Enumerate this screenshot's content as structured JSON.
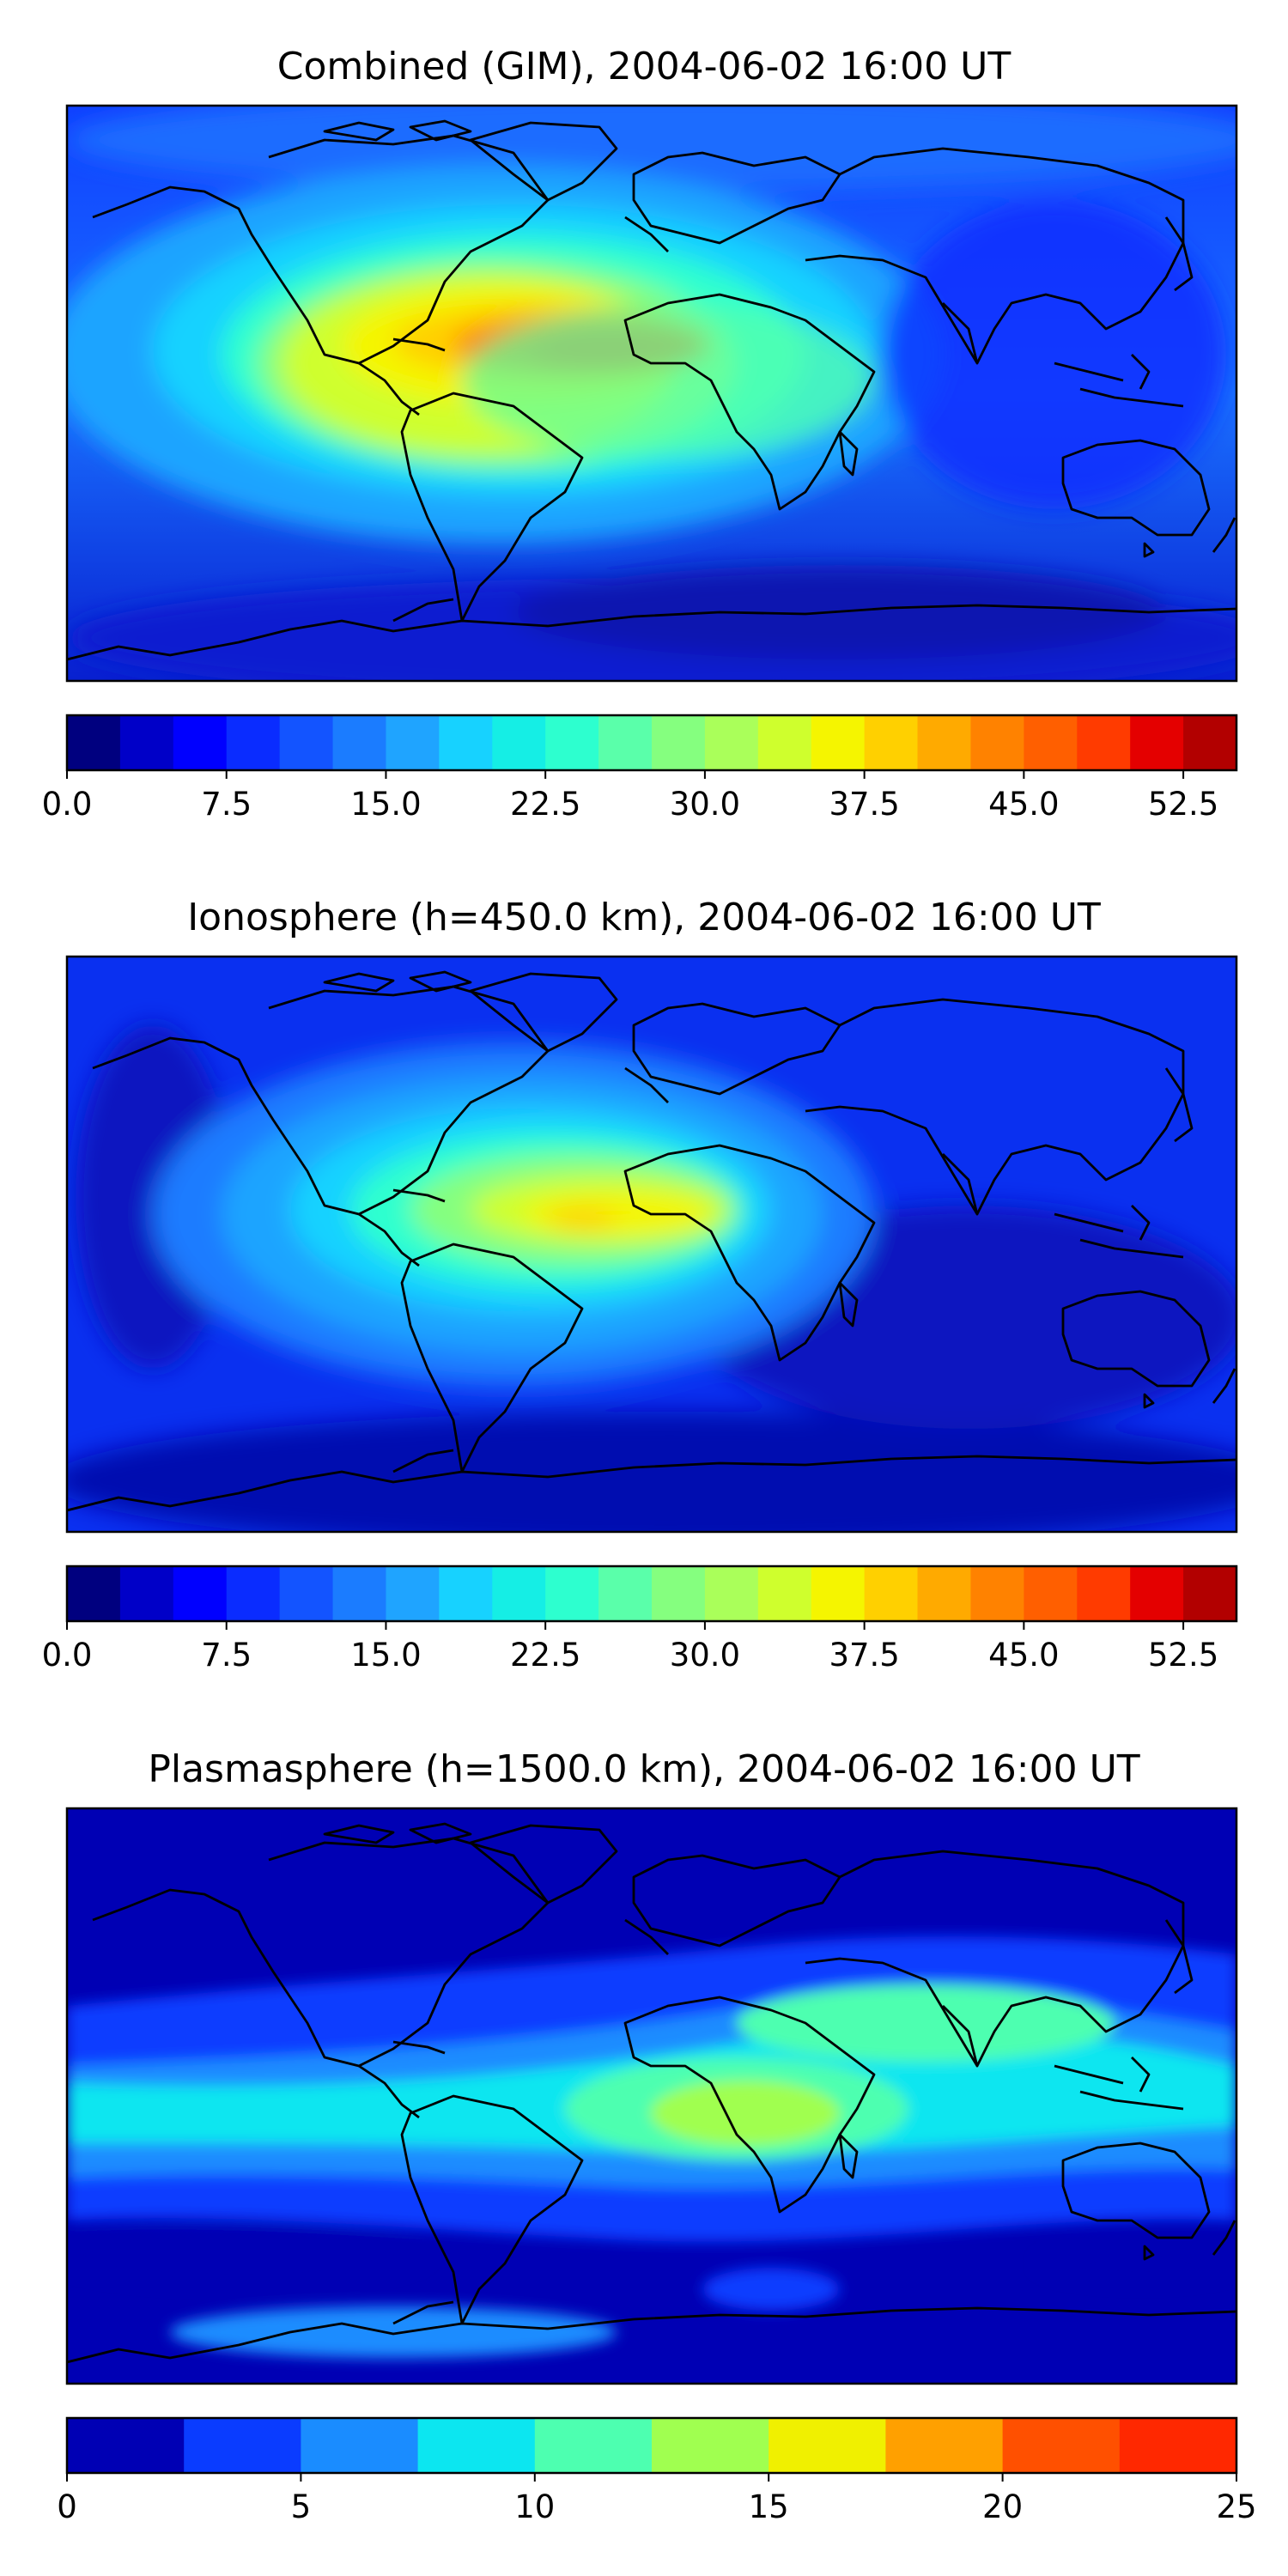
{
  "figure": {
    "background": "#ffffff"
  },
  "chart_data": [
    {
      "type": "heatmap",
      "title": "Combined (GIM), 2004-06-02 16:00 UT",
      "field_description": "global contour map over world coastlines; maximum near equatorial Atlantic / West Africa",
      "colorbar": {
        "levels": [
          0.0,
          2.5,
          5.0,
          7.5,
          10.0,
          12.5,
          15.0,
          17.5,
          20.0,
          22.5,
          25.0,
          27.5,
          30.0,
          32.5,
          35.0,
          37.5,
          40.0,
          42.5,
          45.0,
          47.5,
          50.0,
          52.5,
          55.0
        ],
        "colors": [
          "#00007f",
          "#0000c8",
          "#0000ff",
          "#0a2cff",
          "#1354ff",
          "#1b7cff",
          "#1fa4ff",
          "#17d2ff",
          "#15eee5",
          "#2dffcf",
          "#5affaa",
          "#85ff7f",
          "#aaff5a",
          "#cfff2d",
          "#f5f500",
          "#ffd000",
          "#ffaa00",
          "#ff8200",
          "#ff5f00",
          "#ff3b00",
          "#e40000",
          "#b20000"
        ],
        "tick_values": [
          0.0,
          7.5,
          15.0,
          22.5,
          30.0,
          37.5,
          45.0,
          52.5
        ],
        "tick_labels": [
          "0.0",
          "7.5",
          "15.0",
          "22.5",
          "30.0",
          "37.5",
          "45.0",
          "52.5"
        ],
        "vmin": 0.0,
        "vmax": 55.0
      }
    },
    {
      "type": "heatmap",
      "title": "Ionosphere  (h=450.0 km), 2004-06-02 16:00 UT",
      "field_description": "global contour map over world coastlines; maximum near equatorial Atlantic / West Africa",
      "colorbar": {
        "levels": [
          0.0,
          2.5,
          5.0,
          7.5,
          10.0,
          12.5,
          15.0,
          17.5,
          20.0,
          22.5,
          25.0,
          27.5,
          30.0,
          32.5,
          35.0,
          37.5,
          40.0,
          42.5,
          45.0,
          47.5,
          50.0,
          52.5,
          55.0
        ],
        "colors": [
          "#00007f",
          "#0000c8",
          "#0000ff",
          "#0a2cff",
          "#1354ff",
          "#1b7cff",
          "#1fa4ff",
          "#17d2ff",
          "#15eee5",
          "#2dffcf",
          "#5affaa",
          "#85ff7f",
          "#aaff5a",
          "#cfff2d",
          "#f5f500",
          "#ffd000",
          "#ffaa00",
          "#ff8200",
          "#ff5f00",
          "#ff3b00",
          "#e40000",
          "#b20000"
        ],
        "tick_values": [
          0.0,
          7.5,
          15.0,
          22.5,
          30.0,
          37.5,
          45.0,
          52.5
        ],
        "tick_labels": [
          "0.0",
          "7.5",
          "15.0",
          "22.5",
          "30.0",
          "37.5",
          "45.0",
          "52.5"
        ],
        "vmin": 0.0,
        "vmax": 55.0
      }
    },
    {
      "type": "heatmap",
      "title": "Plasmasphere (h=1500.0 km), 2004-06-02 16:00 UT",
      "field_description": "global contour map over world coastlines; broad maximum over southern Africa",
      "colorbar": {
        "levels": [
          0,
          2.5,
          5,
          7.5,
          10,
          12.5,
          15,
          17.5,
          20,
          22.5,
          25
        ],
        "colors": [
          "#0000b4",
          "#0a3cff",
          "#1a8cff",
          "#0ce6f0",
          "#4dffb0",
          "#a0ff50",
          "#f0f000",
          "#ffa000",
          "#ff5000",
          "#ff2800"
        ],
        "tick_values": [
          0,
          5,
          10,
          15,
          20,
          25
        ],
        "tick_labels": [
          "0",
          "5",
          "10",
          "15",
          "20",
          "25"
        ],
        "vmin": 0,
        "vmax": 25
      }
    }
  ]
}
